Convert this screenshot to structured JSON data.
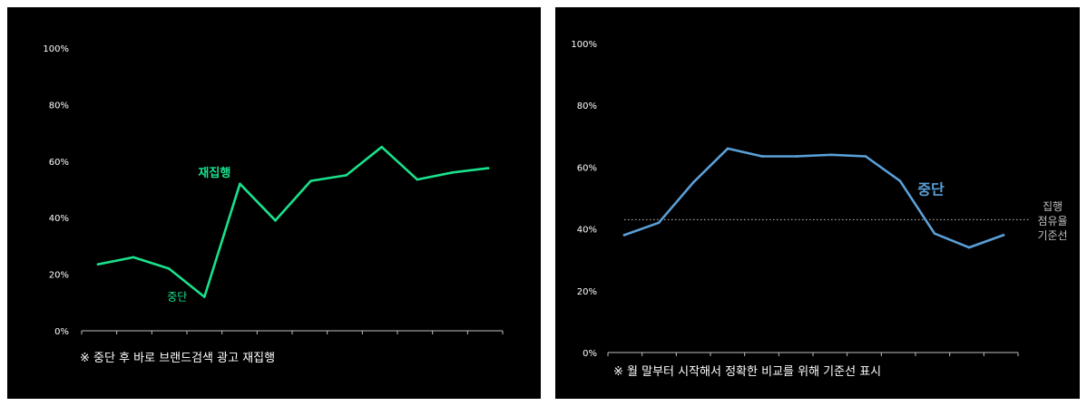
{
  "chart_data": [
    {
      "type": "line",
      "x": [
        1,
        2,
        3,
        4,
        5,
        6,
        7,
        8,
        9,
        10,
        11,
        12
      ],
      "series": [
        {
          "values": [
            23.5,
            26,
            22,
            12,
            52,
            39,
            53,
            55,
            65,
            53.5,
            56,
            57.5
          ],
          "color": "#19e28c"
        }
      ],
      "ylim": [
        0,
        100
      ],
      "yticks": [
        "0%",
        "20%",
        "40%",
        "60%",
        "80%",
        "100%"
      ],
      "yticks_values": [
        0,
        20,
        40,
        60,
        80,
        100
      ],
      "x_tick_count": 13,
      "annotations": [
        {
          "text": "재집행",
          "x": 5,
          "y": 52,
          "color": "#19e28c",
          "bold": true
        },
        {
          "text": "중단",
          "x": 4,
          "y": 12,
          "color": "#19e28c",
          "bold": false
        }
      ],
      "footnote": "※ 중단 후 바로 브랜드검색 광고 재집행",
      "grid": false,
      "legend": "none"
    },
    {
      "type": "line",
      "x": [
        1,
        2,
        3,
        4,
        5,
        6,
        7,
        8,
        9,
        10,
        11,
        12
      ],
      "series": [
        {
          "values": [
            38,
            42,
            55,
            66,
            63.5,
            63.5,
            64,
            63.5,
            55.5,
            38.5,
            34,
            38
          ],
          "color": "#5aa0d8"
        }
      ],
      "reference_line": {
        "y": 43,
        "label": [
          "집행",
          "점유율",
          "기준선"
        ],
        "style": "dotted"
      },
      "ylim": [
        0,
        100
      ],
      "yticks": [
        "0%",
        "20%",
        "40%",
        "60%",
        "80%",
        "100%"
      ],
      "yticks_values": [
        0,
        20,
        40,
        60,
        80,
        100
      ],
      "x_tick_count": 13,
      "annotations": [
        {
          "text": "중단",
          "x": 9,
          "y": 55.5,
          "color": "#5aa0d8",
          "bold": true
        }
      ],
      "footnote": "※ 월 말부터 시작해서 정확한 비교를 위해 기준선 표시",
      "grid": false,
      "legend": "none"
    }
  ]
}
